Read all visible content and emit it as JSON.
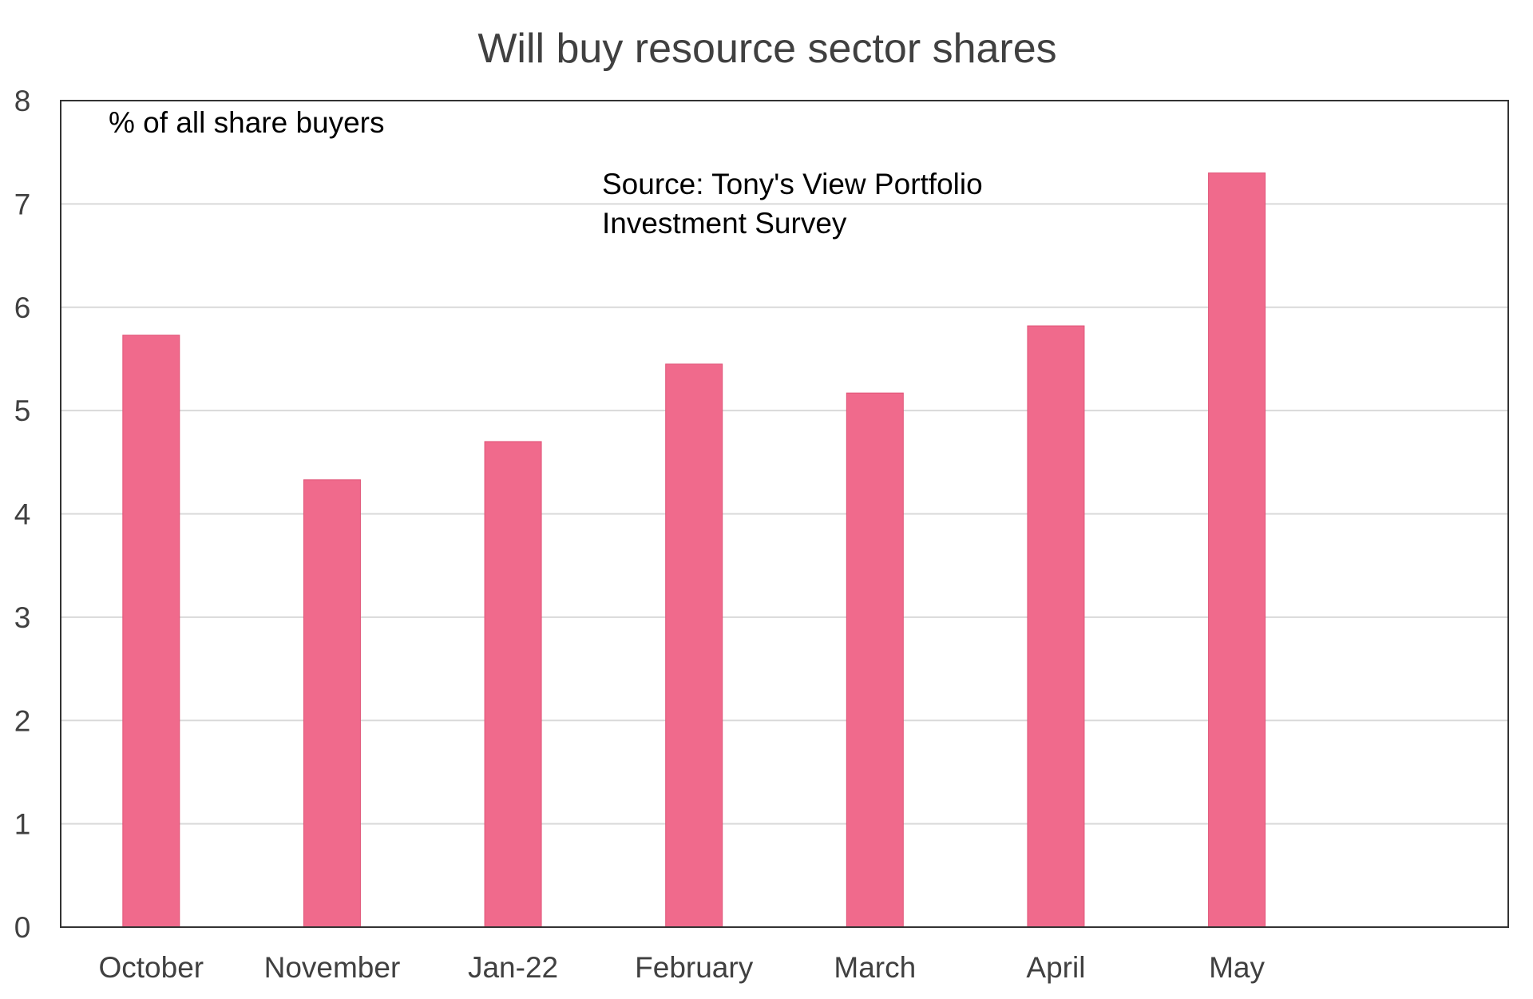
{
  "chart_data": {
    "type": "bar",
    "title": "Will buy resource sector shares",
    "ylabel": "% of all share buyers",
    "xlabel": "",
    "annotation": [
      "Source: Tony's View Portfolio",
      "Investment Survey"
    ],
    "categories": [
      "October",
      "November",
      "Jan-22",
      "February",
      "March",
      "April",
      "May"
    ],
    "values": [
      5.73,
      4.33,
      4.7,
      5.45,
      5.17,
      5.82,
      7.3
    ],
    "ylim": [
      0,
      8
    ],
    "yticks": [
      "0",
      "1",
      "2",
      "3",
      "4",
      "5",
      "6",
      "7",
      "8"
    ],
    "grid": true,
    "bar_color": "#f06a8c",
    "legend": "none"
  }
}
